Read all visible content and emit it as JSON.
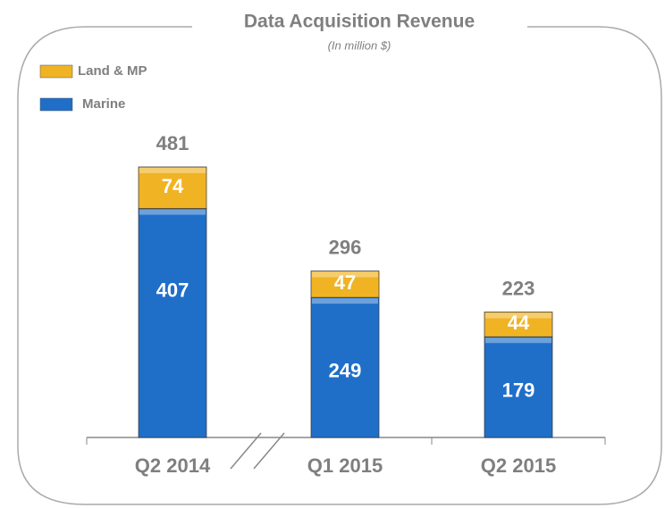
{
  "chart_data": {
    "type": "stacked_bar",
    "title": "Data Acquisition Revenue",
    "subtitle": "(In million $)",
    "categories": [
      "Q2 2014",
      "Q1 2015",
      "Q2 2015"
    ],
    "series": [
      {
        "name": "Marine",
        "color": "#1f6fc9",
        "values": [
          407,
          249,
          179
        ]
      },
      {
        "name": "Land & MP",
        "color": "#f0b323",
        "values": [
          74,
          47,
          44
        ]
      }
    ],
    "totals": [
      481,
      296,
      223
    ]
  }
}
